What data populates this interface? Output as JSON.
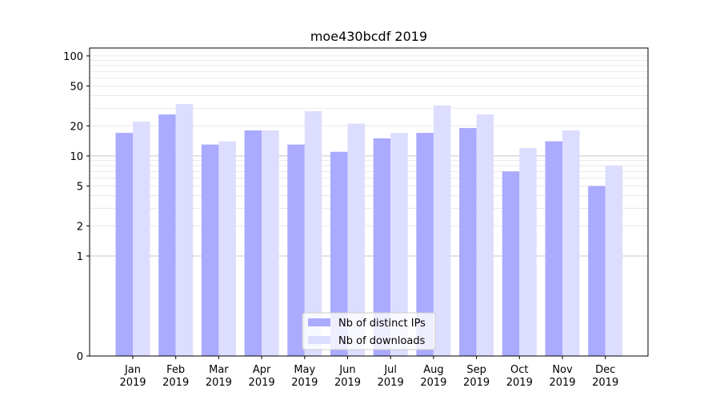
{
  "chart_data": {
    "type": "bar",
    "title": "moe430bcdf 2019",
    "categories": [
      [
        "Jan",
        "2019"
      ],
      [
        "Feb",
        "2019"
      ],
      [
        "Mar",
        "2019"
      ],
      [
        "Apr",
        "2019"
      ],
      [
        "May",
        "2019"
      ],
      [
        "Jun",
        "2019"
      ],
      [
        "Jul",
        "2019"
      ],
      [
        "Aug",
        "2019"
      ],
      [
        "Sep",
        "2019"
      ],
      [
        "Oct",
        "2019"
      ],
      [
        "Nov",
        "2019"
      ],
      [
        "Dec",
        "2019"
      ]
    ],
    "series": [
      {
        "name": "Nb of distinct IPs",
        "color": "#aaaaff",
        "values": [
          17,
          26,
          13,
          18,
          13,
          11,
          15,
          17,
          19,
          7,
          14,
          5
        ]
      },
      {
        "name": "Nb of downloads",
        "color": "#ddddff",
        "values": [
          22,
          33,
          14,
          18,
          28,
          21,
          17,
          32,
          26,
          12,
          18,
          8
        ]
      }
    ],
    "y_scale": "symlog",
    "y_ticks": [
      0,
      1,
      2,
      5,
      10,
      20,
      50,
      100
    ],
    "ylim": [
      0,
      120
    ],
    "grid": "horizontal",
    "legend_position": "bottom-center",
    "xlabel": "",
    "ylabel": ""
  }
}
